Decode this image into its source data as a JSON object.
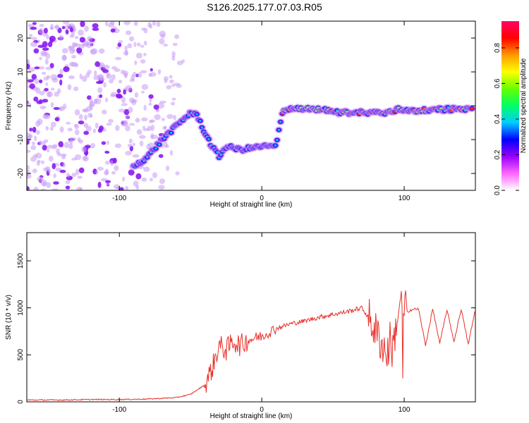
{
  "title": "S126.2025.177.07.03.R05",
  "chart_data": [
    {
      "type": "heatmap",
      "xlabel": "Height of straight line (km)",
      "ylabel": "Frequency (Hz)",
      "xlim": [
        -165,
        150
      ],
      "ylim": [
        -25,
        25
      ],
      "xticks": [
        -100,
        0,
        100
      ],
      "yticks": [
        -20,
        -10,
        0,
        10,
        20
      ],
      "colorbar": {
        "label": "Normalized spectral amplitude",
        "range": [
          0,
          0.95
        ],
        "ticks": [
          "0.0",
          "0.2",
          "0.4",
          "0.6",
          "0.8"
        ],
        "colormap": [
          "#ffffff",
          "#ff66ff",
          "#9900ff",
          "#0000ff",
          "#00ccff",
          "#00ff66",
          "#66ff00",
          "#ffff00",
          "#ff9900",
          "#ff0000",
          "#ff0066"
        ]
      },
      "ridge": [
        {
          "x": -90,
          "y": -18
        },
        {
          "x": -80,
          "y": -15
        },
        {
          "x": -70,
          "y": -10
        },
        {
          "x": -60,
          "y": -6
        },
        {
          "x": -50,
          "y": -2
        },
        {
          "x": -45,
          "y": -3
        },
        {
          "x": -40,
          "y": -8
        },
        {
          "x": -35,
          "y": -12
        },
        {
          "x": -30,
          "y": -15
        },
        {
          "x": -25,
          "y": -12
        },
        {
          "x": -15,
          "y": -13
        },
        {
          "x": 0,
          "y": -12
        },
        {
          "x": 10,
          "y": -12
        },
        {
          "x": 15,
          "y": -1
        },
        {
          "x": 40,
          "y": -1
        },
        {
          "x": 55,
          "y": -2
        },
        {
          "x": 70,
          "y": -2
        },
        {
          "x": 90,
          "y": -2
        },
        {
          "x": 95,
          "y": -1
        },
        {
          "x": 110,
          "y": -1.5
        },
        {
          "x": 130,
          "y": -1
        },
        {
          "x": 148,
          "y": -1
        }
      ]
    },
    {
      "type": "line",
      "xlabel": "Height of straight line (km)",
      "ylabel": "SNR (10 * v/v)",
      "xlim": [
        -165,
        150
      ],
      "ylim": [
        0,
        1800
      ],
      "xticks": [
        -100,
        0,
        100
      ],
      "yticks": [
        0,
        500,
        1000,
        1500
      ],
      "color": "#e8302a",
      "series": [
        {
          "x": [
            -165,
            -140,
            -120,
            -100,
            -80,
            -60,
            -50,
            -40,
            -35,
            -30,
            -25,
            -20,
            -15,
            -10,
            -5,
            0,
            10,
            20,
            30,
            40,
            50,
            60,
            70,
            75,
            80,
            85,
            88,
            90,
            92,
            95,
            98,
            100,
            102,
            105,
            110,
            115,
            120,
            125,
            130,
            135,
            140,
            145,
            150
          ],
          "y": [
            20,
            20,
            25,
            25,
            30,
            45,
            80,
            180,
            350,
            600,
            550,
            650,
            600,
            650,
            680,
            700,
            780,
            830,
            860,
            900,
            930,
            960,
            1000,
            900,
            750,
            600,
            500,
            650,
            550,
            900,
            980,
            1000,
            960,
            980,
            990,
            600,
            990,
            620,
            980,
            640,
            990,
            610,
            990
          ]
        }
      ]
    }
  ]
}
